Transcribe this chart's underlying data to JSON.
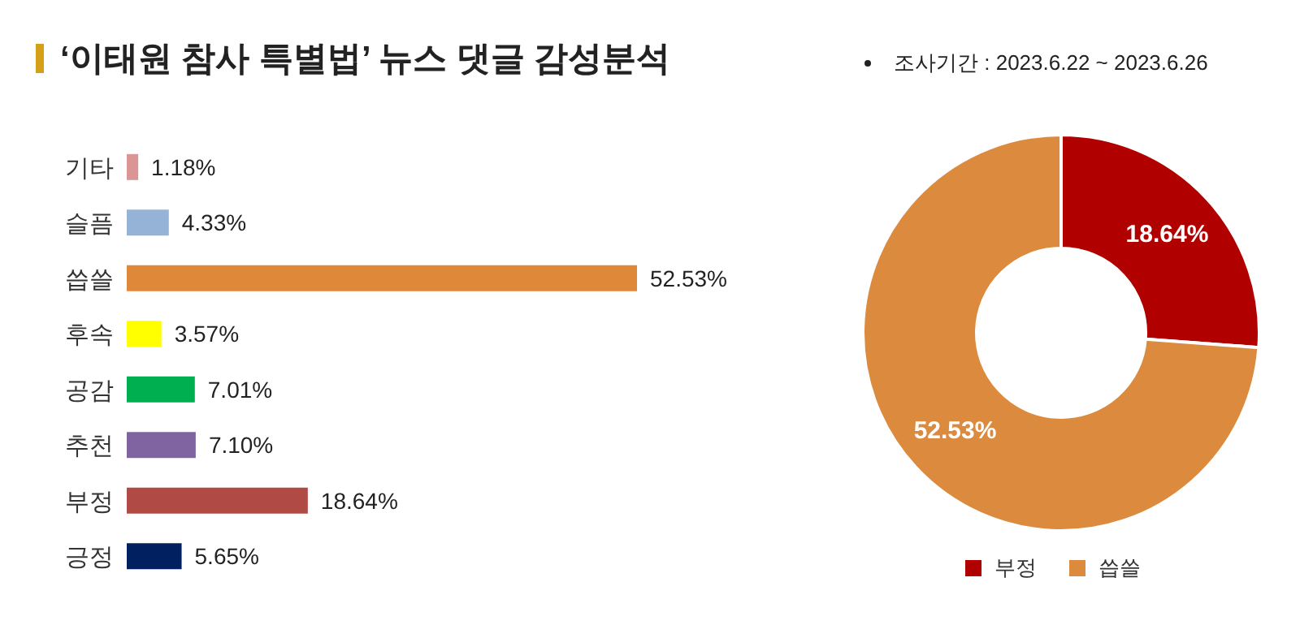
{
  "chart_data": [
    {
      "type": "bar",
      "orientation": "horizontal",
      "title": "‘이태원 참사 특별법’ 뉴스 댓글 감성분석",
      "categories": [
        "기타",
        "슬픔",
        "씁쓸",
        "후속",
        "공감",
        "추천",
        "부정",
        "긍정"
      ],
      "values": [
        1.18,
        4.33,
        52.53,
        3.57,
        7.01,
        7.1,
        18.64,
        5.65
      ],
      "colors": [
        "#d99694",
        "#95b3d7",
        "#e0883a",
        "#ffff00",
        "#00b050",
        "#8064a2",
        "#b04a45",
        "#002060"
      ],
      "value_labels": [
        "1.18%",
        "4.33%",
        "52.53%",
        "3.57%",
        "7.01%",
        "7.10%",
        "18.64%",
        "5.65%"
      ]
    },
    {
      "type": "donut",
      "subtitle": "조사기간 : 2023.6.22 ~ 2023.6.26",
      "categories": [
        "부정",
        "씁쓸"
      ],
      "values": [
        18.64,
        52.53
      ],
      "colors": [
        "#b00000",
        "#dc8a3e"
      ],
      "value_labels": [
        "18.64%",
        "52.53%"
      ],
      "legend": "bottom"
    }
  ]
}
